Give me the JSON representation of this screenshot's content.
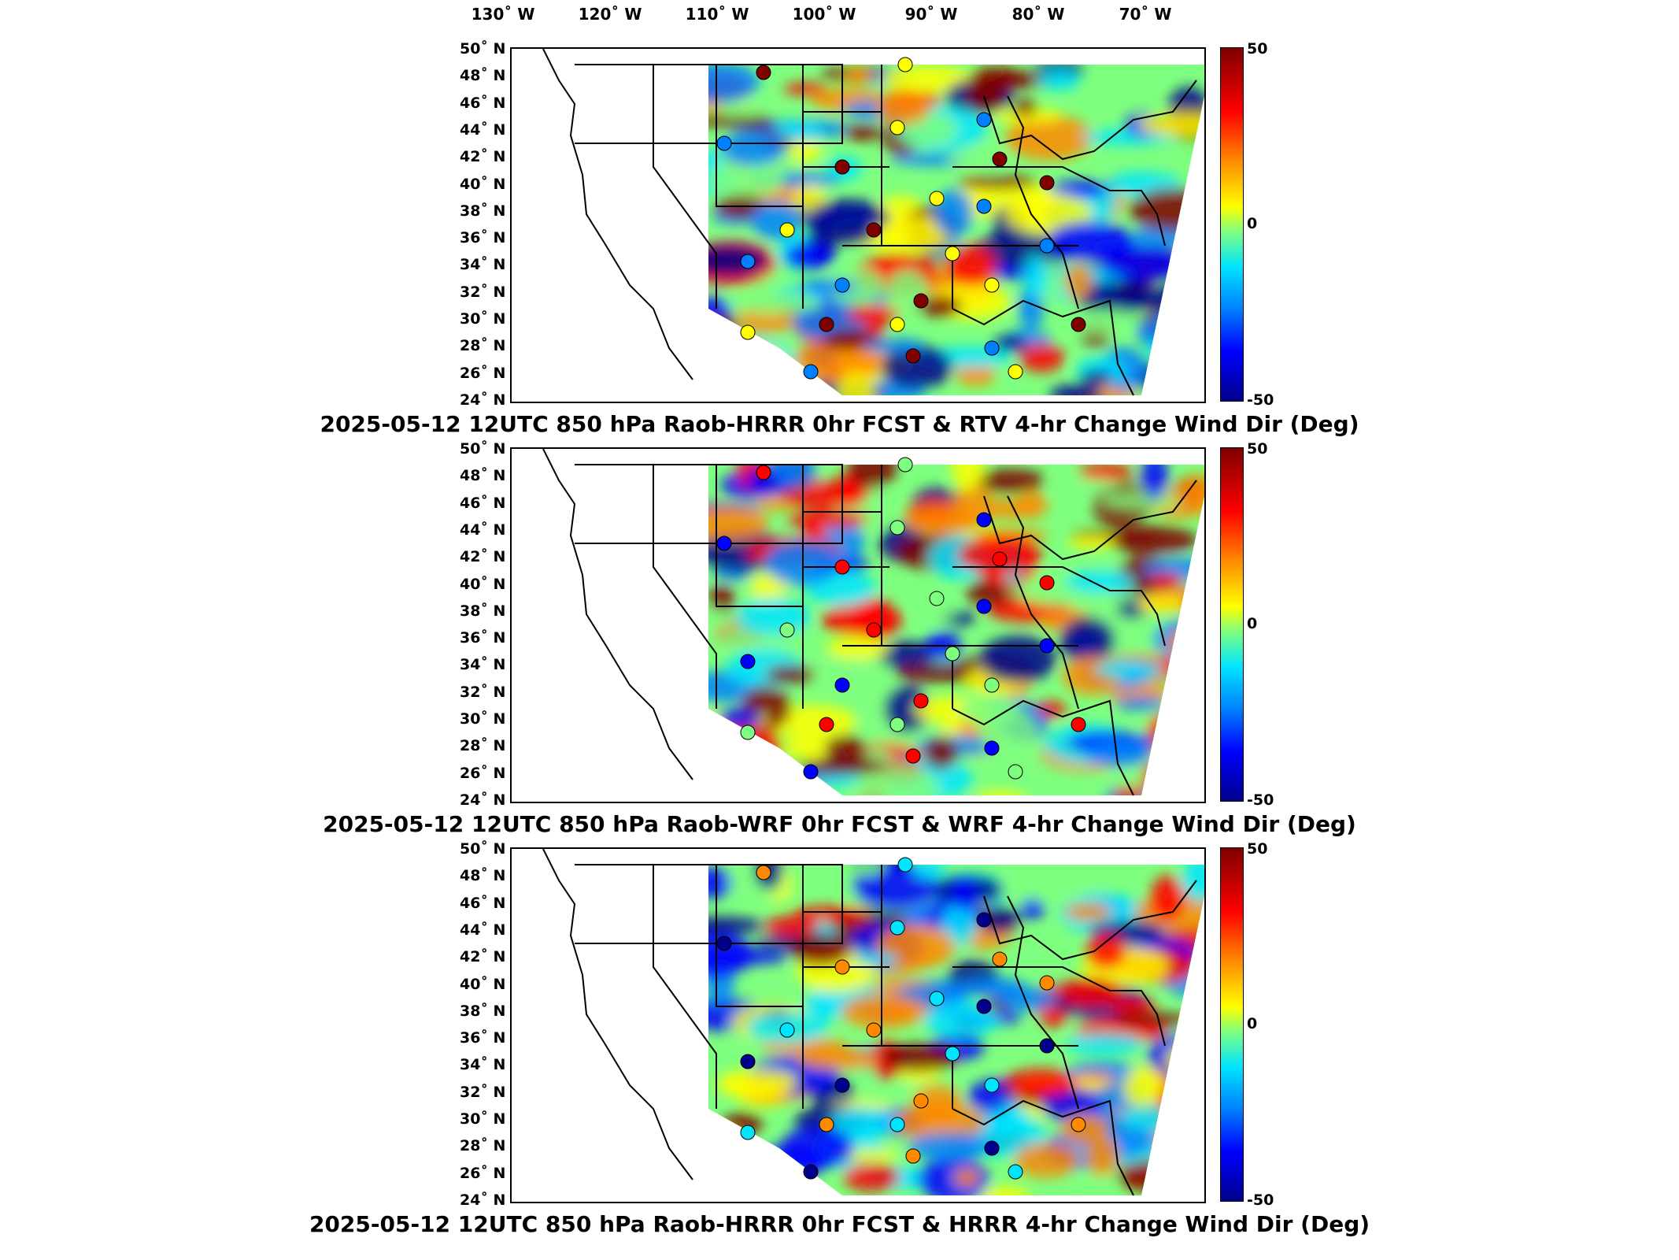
{
  "longitude_labels": [
    "130˚ W",
    "120˚ W",
    "110˚ W",
    "100˚ W",
    "90˚ W",
    "80˚ W",
    "70˚ W"
  ],
  "latitude_labels": [
    "50˚ N",
    "48˚ N",
    "46˚ N",
    "44˚ N",
    "42˚ N",
    "40˚ N",
    "38˚ N",
    "36˚ N",
    "34˚ N",
    "32˚ N",
    "30˚ N",
    "28˚ N",
    "26˚ N",
    "24˚ N"
  ],
  "colorbar": {
    "max_label": "50",
    "mid_label": "0",
    "min_label": "-50",
    "colors": [
      "#7f0000",
      "#ff0000",
      "#ff8a00",
      "#ffff00",
      "#7fff7f",
      "#00e5ff",
      "#0080ff",
      "#0000ff",
      "#00008b"
    ]
  },
  "panels": [
    {
      "title": "2025-05-12 12UTC 850 hPa Raob-HRRR 0hr FCST & RTV 4-hr Change Wind Dir (Deg)"
    },
    {
      "title": "2025-05-12 12UTC 850 hPa Raob-WRF 0hr FCST & WRF 4-hr Change Wind Dir (Deg)"
    },
    {
      "title": "2025-05-12 12UTC 850 hPa Raob-HRRR 0hr FCST & HRRR 4-hr Change Wind Dir (Deg)"
    }
  ],
  "map_data": {
    "domain": "CONUS",
    "quantity": "Change Wind Dir (Deg)",
    "colorbar_range": [
      -50,
      50
    ],
    "lon_range": [
      -130,
      -70
    ],
    "lat_range": [
      24,
      50
    ]
  }
}
